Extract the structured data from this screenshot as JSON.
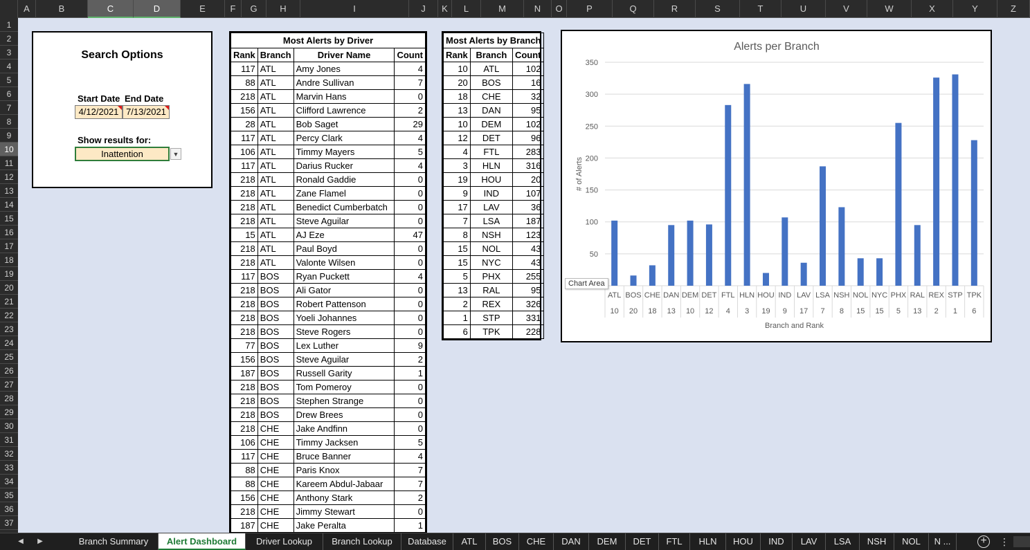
{
  "columns": [
    "A",
    "B",
    "C",
    "D",
    "E",
    "F",
    "G",
    "H",
    "I",
    "J",
    "K",
    "L",
    "M",
    "N",
    "O",
    "P",
    "Q",
    "R",
    "S",
    "T",
    "U",
    "V",
    "W",
    "X",
    "Y",
    "Z"
  ],
  "selected_columns": [
    "C",
    "D"
  ],
  "rows": [
    "1",
    "2",
    "3",
    "4",
    "5",
    "6",
    "7",
    "8",
    "9",
    "10",
    "11",
    "12",
    "13",
    "14",
    "15",
    "16",
    "17",
    "18",
    "19",
    "20",
    "21",
    "22",
    "23",
    "24",
    "25",
    "26",
    "27",
    "28",
    "29",
    "30",
    "31",
    "32",
    "33",
    "34",
    "35",
    "36",
    "37"
  ],
  "selected_row": "10",
  "search": {
    "title": "Search Options",
    "start_label": "Start Date",
    "end_label": "End Date",
    "start_date": "4/12/2021",
    "end_date": "7/13/2021",
    "show_label": "Show results for:",
    "filter_value": "Inattention"
  },
  "driver_table": {
    "title": "Most Alerts by Driver",
    "headers": [
      "Rank",
      "Branch",
      "Driver Name",
      "Count"
    ],
    "rows": [
      [
        "117",
        "ATL",
        "Amy Jones",
        "4"
      ],
      [
        "88",
        "ATL",
        "Andre Sullivan",
        "7"
      ],
      [
        "218",
        "ATL",
        "Marvin Hans",
        "0"
      ],
      [
        "156",
        "ATL",
        "Clifford Lawrence",
        "2"
      ],
      [
        "28",
        "ATL",
        "Bob Saget",
        "29"
      ],
      [
        "117",
        "ATL",
        "Percy Clark",
        "4"
      ],
      [
        "106",
        "ATL",
        "Timmy Mayers",
        "5"
      ],
      [
        "117",
        "ATL",
        "Darius Rucker",
        "4"
      ],
      [
        "218",
        "ATL",
        "Ronald Gaddie",
        "0"
      ],
      [
        "218",
        "ATL",
        "Zane Flamel",
        "0"
      ],
      [
        "218",
        "ATL",
        "Benedict Cumberbatch",
        "0"
      ],
      [
        "218",
        "ATL",
        "Steve Aguilar",
        "0"
      ],
      [
        "15",
        "ATL",
        "AJ Eze",
        "47"
      ],
      [
        "218",
        "ATL",
        "Paul Boyd",
        "0"
      ],
      [
        "218",
        "ATL",
        "Valonte Wilsen",
        "0"
      ],
      [
        "117",
        "BOS",
        "Ryan Puckett",
        "4"
      ],
      [
        "218",
        "BOS",
        "Ali Gator",
        "0"
      ],
      [
        "218",
        "BOS",
        "Robert Pattenson",
        "0"
      ],
      [
        "218",
        "BOS",
        "Yoeli Johannes",
        "0"
      ],
      [
        "218",
        "BOS",
        "Steve Rogers",
        "0"
      ],
      [
        "77",
        "BOS",
        "Lex Luther",
        "9"
      ],
      [
        "156",
        "BOS",
        "Steve Aguilar",
        "2"
      ],
      [
        "187",
        "BOS",
        "Russell Garity",
        "1"
      ],
      [
        "218",
        "BOS",
        "Tom Pomeroy",
        "0"
      ],
      [
        "218",
        "BOS",
        "Stephen Strange",
        "0"
      ],
      [
        "218",
        "BOS",
        "Drew Brees",
        "0"
      ],
      [
        "218",
        "CHE",
        "Jake Andfinn",
        "0"
      ],
      [
        "106",
        "CHE",
        "Timmy Jacksen",
        "5"
      ],
      [
        "117",
        "CHE",
        "Bruce Banner",
        "4"
      ],
      [
        "88",
        "CHE",
        "Paris Knox",
        "7"
      ],
      [
        "88",
        "CHE",
        "Kareem Abdul-Jabaar",
        "7"
      ],
      [
        "156",
        "CHE",
        "Anthony Stark",
        "2"
      ],
      [
        "218",
        "CHE",
        "Jimmy Stewart",
        "0"
      ],
      [
        "187",
        "CHE",
        "Jake Peralta",
        "1"
      ]
    ]
  },
  "branch_table": {
    "title": "Most Alerts by Branch",
    "headers": [
      "Rank",
      "Branch",
      "Count"
    ],
    "rows": [
      [
        "10",
        "ATL",
        "102"
      ],
      [
        "20",
        "BOS",
        "16"
      ],
      [
        "18",
        "CHE",
        "32"
      ],
      [
        "13",
        "DAN",
        "95"
      ],
      [
        "10",
        "DEM",
        "102"
      ],
      [
        "12",
        "DET",
        "96"
      ],
      [
        "4",
        "FTL",
        "283"
      ],
      [
        "3",
        "HLN",
        "316"
      ],
      [
        "19",
        "HOU",
        "20"
      ],
      [
        "9",
        "IND",
        "107"
      ],
      [
        "17",
        "LAV",
        "36"
      ],
      [
        "7",
        "LSA",
        "187"
      ],
      [
        "8",
        "NSH",
        "123"
      ],
      [
        "15",
        "NOL",
        "43"
      ],
      [
        "15",
        "NYC",
        "43"
      ],
      [
        "5",
        "PHX",
        "255"
      ],
      [
        "13",
        "RAL",
        "95"
      ],
      [
        "2",
        "REX",
        "326"
      ],
      [
        "1",
        "STP",
        "331"
      ],
      [
        "6",
        "TPK",
        "228"
      ]
    ]
  },
  "chart_tooltip": "Chart Area",
  "chart_data": {
    "type": "bar",
    "title": "Alerts per Branch",
    "xlabel": "Branch and Rank",
    "ylabel": "# of Alerts",
    "categories": [
      "ATL",
      "BOS",
      "CHE",
      "DAN",
      "DEM",
      "DET",
      "FTL",
      "HLN",
      "HOU",
      "IND",
      "LAV",
      "LSA",
      "NSH",
      "NOL",
      "NYC",
      "PHX",
      "RAL",
      "REX",
      "STP",
      "TPK"
    ],
    "ranks": [
      "10",
      "20",
      "18",
      "13",
      "10",
      "12",
      "4",
      "3",
      "19",
      "9",
      "17",
      "7",
      "8",
      "15",
      "15",
      "5",
      "13",
      "2",
      "1",
      "6"
    ],
    "values": [
      102,
      16,
      32,
      95,
      102,
      96,
      283,
      316,
      20,
      107,
      36,
      187,
      123,
      43,
      43,
      255,
      95,
      326,
      331,
      228
    ],
    "yticks": [
      50,
      100,
      150,
      200,
      250,
      300,
      350
    ],
    "ylim": [
      0,
      350
    ],
    "grid": true,
    "bar_color": "#4472c4"
  },
  "tabs": [
    "Branch Summary",
    "Alert Dashboard",
    "Driver Lookup",
    "Branch Lookup",
    "Database",
    "ATL",
    "BOS",
    "CHE",
    "DAN",
    "DEM",
    "DET",
    "FTL",
    "HLN",
    "HOU",
    "IND",
    "LAV",
    "LSA",
    "NSH",
    "NOL",
    "N ..."
  ],
  "active_tab": "Alert Dashboard"
}
